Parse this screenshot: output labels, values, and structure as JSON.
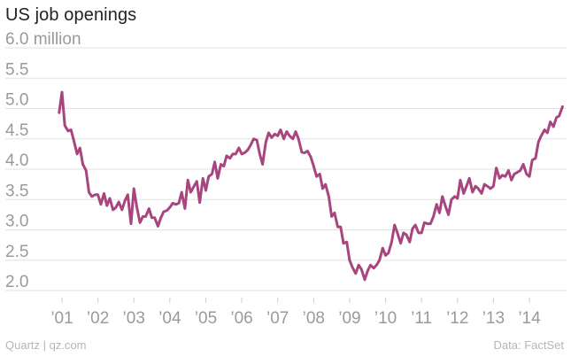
{
  "header": {
    "title": "US job openings"
  },
  "footer": {
    "source_left": "Quartz | qz.com",
    "source_right": "Data: FactSet"
  },
  "colors": {
    "line": "#a8457f",
    "grid": "#e2e2e2",
    "axis_text": "#9a9a9a"
  },
  "chart_data": {
    "type": "line",
    "title": "US job openings",
    "xlabel": "",
    "ylabel": "",
    "ylim": [
      2.0,
      6.0
    ],
    "y_ticks": [
      {
        "value": 6.0,
        "label": "6.0 million"
      },
      {
        "value": 5.5,
        "label": "5.5"
      },
      {
        "value": 5.0,
        "label": "5.0"
      },
      {
        "value": 4.5,
        "label": "4.5"
      },
      {
        "value": 4.0,
        "label": "4.0"
      },
      {
        "value": 3.5,
        "label": "3.5"
      },
      {
        "value": 3.0,
        "label": "3.0"
      },
      {
        "value": 2.5,
        "label": "2.5"
      },
      {
        "value": 2.0,
        "label": "2.0"
      }
    ],
    "x_ticks": [
      {
        "value": 2001,
        "label": "’01"
      },
      {
        "value": 2002,
        "label": "’02"
      },
      {
        "value": 2003,
        "label": "’03"
      },
      {
        "value": 2004,
        "label": "’04"
      },
      {
        "value": 2005,
        "label": "’05"
      },
      {
        "value": 2006,
        "label": "’06"
      },
      {
        "value": 2007,
        "label": "’07"
      },
      {
        "value": 2008,
        "label": "’08"
      },
      {
        "value": 2009,
        "label": "’09"
      },
      {
        "value": 2010,
        "label": "’10"
      },
      {
        "value": 2011,
        "label": "’11"
      },
      {
        "value": 2012,
        "label": "’12"
      },
      {
        "value": 2013,
        "label": "’13"
      },
      {
        "value": 2014,
        "label": "’14"
      }
    ],
    "grid": true,
    "series": [
      {
        "points": [
          [
            2000.92,
            4.93
          ],
          [
            2001.0,
            5.27
          ],
          [
            2001.08,
            4.72
          ],
          [
            2001.17,
            4.63
          ],
          [
            2001.25,
            4.65
          ],
          [
            2001.33,
            4.47
          ],
          [
            2001.42,
            4.25
          ],
          [
            2001.5,
            4.35
          ],
          [
            2001.58,
            4.08
          ],
          [
            2001.67,
            3.98
          ],
          [
            2001.75,
            3.62
          ],
          [
            2001.83,
            3.55
          ],
          [
            2001.92,
            3.58
          ],
          [
            2002.0,
            3.58
          ],
          [
            2002.08,
            3.42
          ],
          [
            2002.17,
            3.6
          ],
          [
            2002.25,
            3.4
          ],
          [
            2002.33,
            3.52
          ],
          [
            2002.42,
            3.33
          ],
          [
            2002.5,
            3.37
          ],
          [
            2002.58,
            3.46
          ],
          [
            2002.67,
            3.33
          ],
          [
            2002.75,
            3.48
          ],
          [
            2002.83,
            3.58
          ],
          [
            2002.92,
            3.1
          ],
          [
            2003.0,
            3.68
          ],
          [
            2003.08,
            3.38
          ],
          [
            2003.17,
            3.12
          ],
          [
            2003.25,
            3.22
          ],
          [
            2003.33,
            3.22
          ],
          [
            2003.42,
            3.35
          ],
          [
            2003.5,
            3.2
          ],
          [
            2003.58,
            3.2
          ],
          [
            2003.67,
            3.06
          ],
          [
            2003.75,
            3.2
          ],
          [
            2003.83,
            3.3
          ],
          [
            2003.92,
            3.32
          ],
          [
            2004.0,
            3.37
          ],
          [
            2004.08,
            3.44
          ],
          [
            2004.17,
            3.42
          ],
          [
            2004.25,
            3.44
          ],
          [
            2004.33,
            3.62
          ],
          [
            2004.42,
            3.35
          ],
          [
            2004.5,
            3.82
          ],
          [
            2004.58,
            3.62
          ],
          [
            2004.67,
            3.72
          ],
          [
            2004.75,
            3.8
          ],
          [
            2004.83,
            3.45
          ],
          [
            2004.92,
            3.85
          ],
          [
            2005.0,
            3.65
          ],
          [
            2005.08,
            3.88
          ],
          [
            2005.17,
            3.92
          ],
          [
            2005.25,
            4.12
          ],
          [
            2005.33,
            3.85
          ],
          [
            2005.42,
            4.08
          ],
          [
            2005.5,
            4.05
          ],
          [
            2005.58,
            4.22
          ],
          [
            2005.67,
            4.18
          ],
          [
            2005.75,
            4.25
          ],
          [
            2005.83,
            4.25
          ],
          [
            2005.92,
            4.35
          ],
          [
            2006.0,
            4.25
          ],
          [
            2006.08,
            4.27
          ],
          [
            2006.17,
            4.32
          ],
          [
            2006.25,
            4.4
          ],
          [
            2006.33,
            4.5
          ],
          [
            2006.42,
            4.48
          ],
          [
            2006.5,
            4.25
          ],
          [
            2006.58,
            4.08
          ],
          [
            2006.67,
            4.45
          ],
          [
            2006.75,
            4.6
          ],
          [
            2006.83,
            4.52
          ],
          [
            2006.92,
            4.58
          ],
          [
            2007.0,
            4.55
          ],
          [
            2007.08,
            4.65
          ],
          [
            2007.17,
            4.5
          ],
          [
            2007.25,
            4.62
          ],
          [
            2007.33,
            4.55
          ],
          [
            2007.42,
            4.5
          ],
          [
            2007.5,
            4.62
          ],
          [
            2007.58,
            4.5
          ],
          [
            2007.67,
            4.28
          ],
          [
            2007.75,
            4.27
          ],
          [
            2007.83,
            4.3
          ],
          [
            2007.92,
            4.2
          ],
          [
            2008.0,
            4.05
          ],
          [
            2008.08,
            3.88
          ],
          [
            2008.17,
            3.92
          ],
          [
            2008.25,
            3.68
          ],
          [
            2008.33,
            3.75
          ],
          [
            2008.42,
            3.55
          ],
          [
            2008.5,
            3.22
          ],
          [
            2008.58,
            3.28
          ],
          [
            2008.67,
            3.05
          ],
          [
            2008.75,
            3.05
          ],
          [
            2008.83,
            2.78
          ],
          [
            2008.92,
            2.8
          ],
          [
            2009.0,
            2.5
          ],
          [
            2009.08,
            2.38
          ],
          [
            2009.17,
            2.28
          ],
          [
            2009.25,
            2.42
          ],
          [
            2009.33,
            2.35
          ],
          [
            2009.42,
            2.18
          ],
          [
            2009.5,
            2.32
          ],
          [
            2009.58,
            2.42
          ],
          [
            2009.67,
            2.37
          ],
          [
            2009.75,
            2.42
          ],
          [
            2009.83,
            2.5
          ],
          [
            2009.92,
            2.7
          ],
          [
            2010.0,
            2.58
          ],
          [
            2010.08,
            2.62
          ],
          [
            2010.17,
            2.8
          ],
          [
            2010.25,
            3.08
          ],
          [
            2010.33,
            2.95
          ],
          [
            2010.42,
            2.78
          ],
          [
            2010.5,
            2.95
          ],
          [
            2010.58,
            2.92
          ],
          [
            2010.67,
            2.8
          ],
          [
            2010.75,
            3.02
          ],
          [
            2010.83,
            3.08
          ],
          [
            2010.92,
            2.95
          ],
          [
            2011.0,
            2.95
          ],
          [
            2011.08,
            3.12
          ],
          [
            2011.17,
            3.1
          ],
          [
            2011.25,
            3.1
          ],
          [
            2011.33,
            3.22
          ],
          [
            2011.42,
            3.42
          ],
          [
            2011.5,
            3.28
          ],
          [
            2011.58,
            3.55
          ],
          [
            2011.67,
            3.38
          ],
          [
            2011.75,
            3.25
          ],
          [
            2011.83,
            3.5
          ],
          [
            2011.92,
            3.55
          ],
          [
            2012.0,
            3.52
          ],
          [
            2012.08,
            3.82
          ],
          [
            2012.17,
            3.6
          ],
          [
            2012.25,
            3.72
          ],
          [
            2012.33,
            3.85
          ],
          [
            2012.42,
            3.62
          ],
          [
            2012.5,
            3.72
          ],
          [
            2012.58,
            3.68
          ],
          [
            2012.67,
            3.6
          ],
          [
            2012.75,
            3.75
          ],
          [
            2012.83,
            3.72
          ],
          [
            2012.92,
            3.68
          ],
          [
            2013.0,
            3.72
          ],
          [
            2013.08,
            4.02
          ],
          [
            2013.17,
            3.85
          ],
          [
            2013.25,
            3.9
          ],
          [
            2013.33,
            3.88
          ],
          [
            2013.42,
            3.98
          ],
          [
            2013.5,
            3.82
          ],
          [
            2013.58,
            3.92
          ],
          [
            2013.67,
            3.95
          ],
          [
            2013.75,
            3.98
          ],
          [
            2013.83,
            4.08
          ],
          [
            2013.92,
            3.92
          ],
          [
            2014.0,
            3.88
          ],
          [
            2014.08,
            4.15
          ],
          [
            2014.17,
            4.18
          ],
          [
            2014.25,
            4.45
          ],
          [
            2014.33,
            4.55
          ],
          [
            2014.42,
            4.65
          ],
          [
            2014.5,
            4.6
          ],
          [
            2014.58,
            4.78
          ],
          [
            2014.67,
            4.7
          ],
          [
            2014.75,
            4.85
          ],
          [
            2014.83,
            4.88
          ],
          [
            2014.92,
            5.03
          ]
        ]
      }
    ]
  }
}
